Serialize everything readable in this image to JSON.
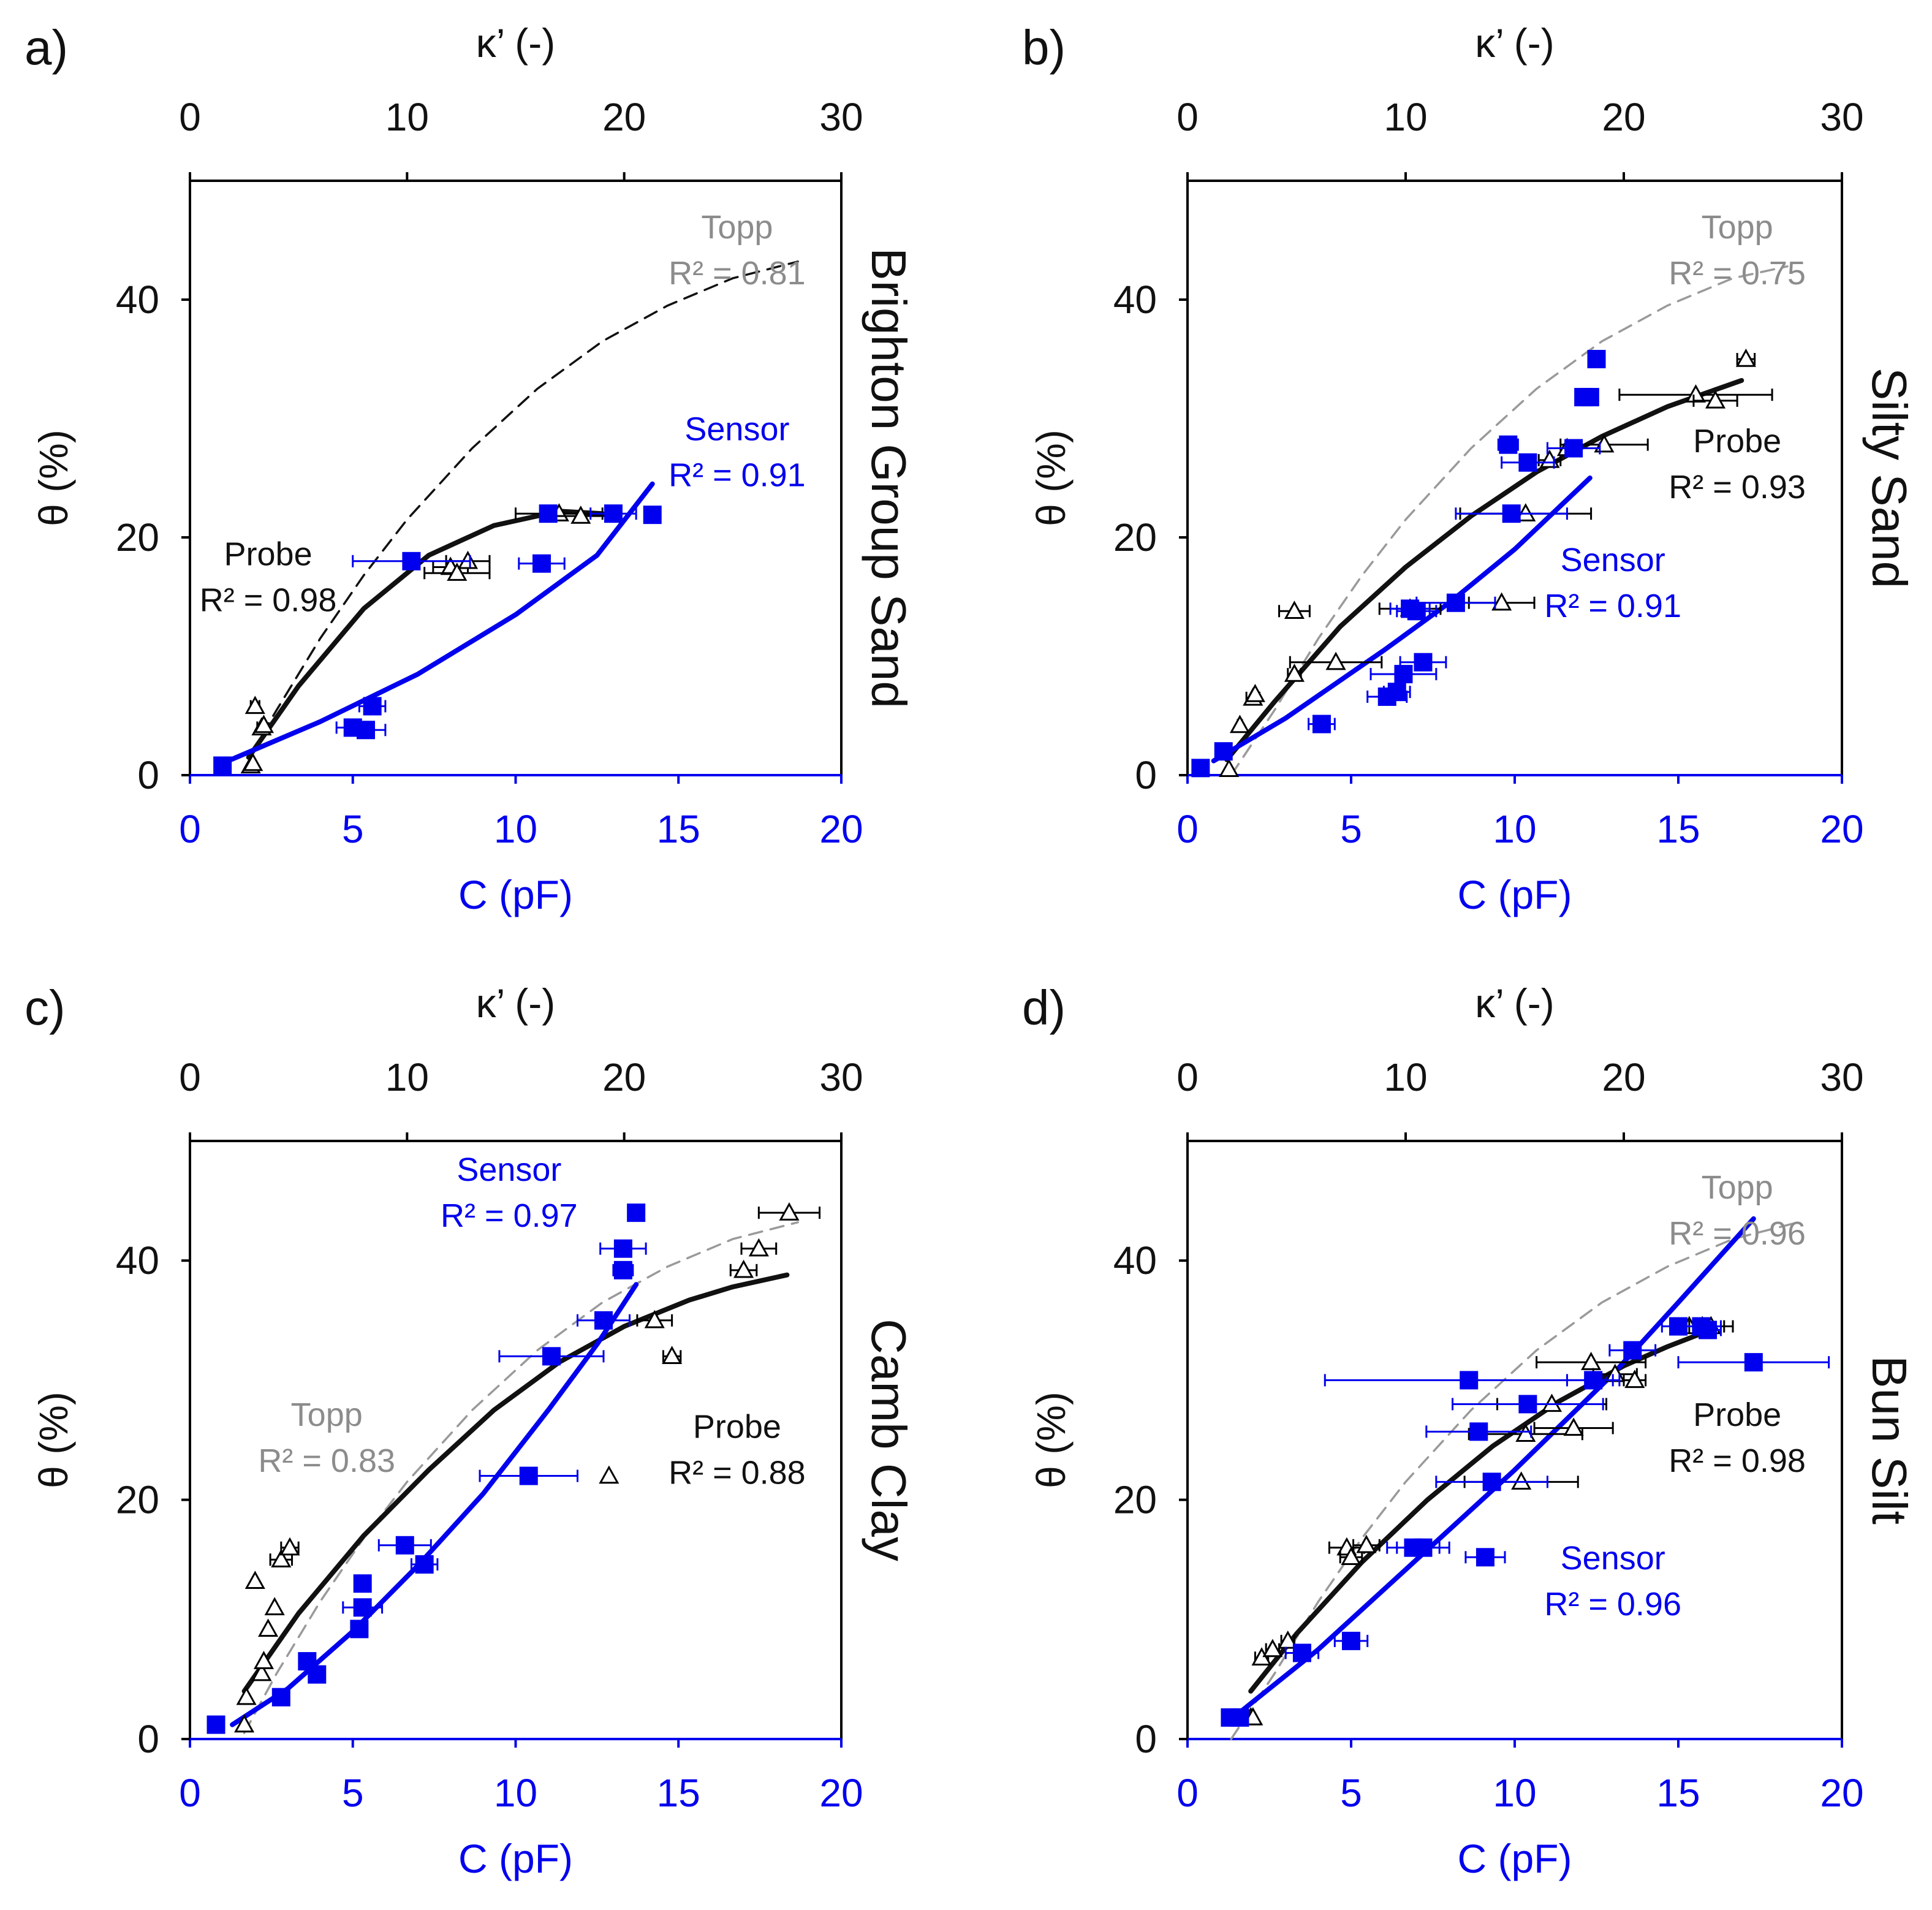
{
  "colors": {
    "sensor": "#0000ee",
    "probe": "#111111",
    "topp": "#8c8c8c",
    "axis_bottom": "#0000ee"
  },
  "chart_data": [
    {
      "type": "scatter",
      "panel_label": "a)",
      "soil": "Brighton Group Sand",
      "xlabel": "C (pF)",
      "x2label": "κ’ (-)",
      "ylabel": "θ (%)",
      "xlim": [
        0,
        20
      ],
      "x2lim": [
        0,
        30
      ],
      "ylim": [
        0,
        50
      ],
      "xticks": [
        "0",
        "5",
        "10",
        "15",
        "20"
      ],
      "x2ticks": [
        "0",
        "10",
        "20",
        "30"
      ],
      "yticks": [
        "0",
        "20",
        "40"
      ],
      "sensor": {
        "name": "Sensor",
        "r2_text": "R² = 0.91",
        "points": [
          [
            1.0,
            0.8,
            0
          ],
          [
            5.0,
            4.0,
            0.5
          ],
          [
            5.4,
            3.8,
            0.6
          ],
          [
            5.6,
            5.8,
            0.4
          ],
          [
            6.8,
            18.0,
            1.8
          ],
          [
            10.8,
            17.8,
            0.7
          ],
          [
            11.0,
            22.0,
            0
          ],
          [
            13.0,
            22.0,
            0.7
          ],
          [
            14.2,
            21.9,
            0
          ]
        ],
        "fit": [
          [
            1.0,
            1.0
          ],
          [
            4,
            4.5
          ],
          [
            7,
            8.5
          ],
          [
            10,
            13.5
          ],
          [
            12.5,
            18.5
          ],
          [
            14.2,
            24.5
          ]
        ]
      },
      "probe": {
        "name": "Probe",
        "r2_text": "R² = 0.98",
        "points": [
          [
            2.8,
            0.8,
            0
          ],
          [
            2.9,
            1.0,
            0
          ],
          [
            3.3,
            4.0,
            0.2
          ],
          [
            3.4,
            4.2,
            0
          ],
          [
            3.0,
            5.8,
            0.2
          ],
          [
            12.0,
            17.5,
            0.8
          ],
          [
            12.3,
            17.0,
            1.5
          ],
          [
            12.8,
            18.0,
            1.0
          ],
          [
            17.0,
            22.0,
            2.0
          ],
          [
            18.0,
            21.8,
            1.2
          ]
        ],
        "fit": [
          [
            2.7,
            1.5
          ],
          [
            5,
            7.5
          ],
          [
            8,
            14.0
          ],
          [
            11,
            18.5
          ],
          [
            14,
            21.0
          ],
          [
            17,
            22.2
          ],
          [
            19,
            22.0
          ]
        ]
      },
      "topp": {
        "name": "Topp",
        "r2_text": "R² = 0.81",
        "curve": [
          [
            2.8,
            1.8
          ],
          [
            4,
            5.5
          ],
          [
            6,
            11.5
          ],
          [
            8,
            16.8
          ],
          [
            10,
            21.5
          ],
          [
            13,
            27.5
          ],
          [
            16,
            32.5
          ],
          [
            19,
            36.5
          ],
          [
            22,
            39.5
          ],
          [
            25,
            41.8
          ],
          [
            28,
            43.2
          ]
        ]
      }
    },
    {
      "type": "scatter",
      "panel_label": "b)",
      "soil": "Silty Sand",
      "xlabel": "C (pF)",
      "x2label": "κ’ (-)",
      "ylabel": "θ (%)",
      "xlim": [
        0,
        20
      ],
      "x2lim": [
        0,
        30
      ],
      "ylim": [
        0,
        50
      ],
      "xticks": [
        "0",
        "5",
        "10",
        "15",
        "20"
      ],
      "x2ticks": [
        "0",
        "10",
        "20",
        "30"
      ],
      "yticks": [
        "0",
        "20",
        "40"
      ],
      "sensor": {
        "name": "Sensor",
        "r2_text": "R² = 0.91",
        "points": [
          [
            0.4,
            0.6,
            0
          ],
          [
            1.1,
            2.0,
            0
          ],
          [
            4.1,
            4.3,
            0.4
          ],
          [
            6.1,
            6.6,
            0.6
          ],
          [
            6.4,
            7.0,
            0.4
          ],
          [
            6.6,
            8.5,
            1.0
          ],
          [
            7.2,
            9.5,
            0.7
          ],
          [
            6.8,
            14.0,
            0.6
          ],
          [
            7.0,
            13.8,
            0.6
          ],
          [
            8.2,
            14.5,
            1.2
          ],
          [
            9.9,
            22.0,
            1.7
          ],
          [
            10.4,
            26.3,
            0.8
          ],
          [
            9.8,
            27.8,
            0.3
          ],
          [
            11.8,
            27.5,
            0.8
          ],
          [
            12.1,
            31.8,
            0
          ],
          [
            12.3,
            31.8,
            0
          ],
          [
            12.5,
            35.0,
            0
          ]
        ],
        "fit": [
          [
            0.8,
            1.2
          ],
          [
            3,
            4.8
          ],
          [
            6,
            10.5
          ],
          [
            8,
            14.5
          ],
          [
            10,
            19.0
          ],
          [
            12.3,
            25.0
          ]
        ]
      },
      "probe": {
        "name": "Probe",
        "r2_text": "R² = 0.93",
        "points": [
          [
            1.9,
            0.5,
            0
          ],
          [
            2.4,
            4.2,
            0.1
          ],
          [
            3.0,
            6.5,
            0.3
          ],
          [
            3.1,
            6.8,
            0
          ],
          [
            4.9,
            13.8,
            0.7
          ],
          [
            4.9,
            8.5,
            0.3
          ],
          [
            6.8,
            9.5,
            2.1
          ],
          [
            10.2,
            14.0,
            1.4
          ],
          [
            14.4,
            14.5,
            1.5
          ],
          [
            15.5,
            22.0,
            3.0
          ],
          [
            16.6,
            26.5,
            0.5
          ],
          [
            17.4,
            27.5,
            0
          ],
          [
            19.1,
            27.8,
            2.0
          ],
          [
            23.3,
            32.0,
            3.5
          ],
          [
            24.2,
            31.5,
            1.0
          ],
          [
            25.6,
            35.0,
            0.4
          ]
        ],
        "fit": [
          [
            1.8,
            1.3
          ],
          [
            4,
            6.2
          ],
          [
            7,
            12.5
          ],
          [
            10,
            17.5
          ],
          [
            13,
            21.8
          ],
          [
            16,
            25.5
          ],
          [
            19,
            28.5
          ],
          [
            22,
            31.0
          ],
          [
            25.4,
            33.2
          ]
        ]
      },
      "topp": {
        "name": "Topp",
        "r2_text": "R² = 0.75",
        "curve": [
          [
            2.0,
            0
          ],
          [
            4,
            5.5
          ],
          [
            6,
            11.5
          ],
          [
            8,
            16.8
          ],
          [
            10,
            21.5
          ],
          [
            13,
            27.5
          ],
          [
            16,
            32.5
          ],
          [
            19,
            36.5
          ],
          [
            22,
            39.5
          ],
          [
            25,
            41.8
          ],
          [
            27.5,
            42.8
          ]
        ]
      }
    },
    {
      "type": "scatter",
      "panel_label": "c)",
      "soil": "Camb Clay",
      "xlabel": "C (pF)",
      "x2label": "κ’ (-)",
      "ylabel": "θ (%)",
      "xlim": [
        0,
        20
      ],
      "x2lim": [
        0,
        30
      ],
      "ylim": [
        0,
        50
      ],
      "xticks": [
        "0",
        "5",
        "10",
        "15",
        "20"
      ],
      "x2ticks": [
        "0",
        "10",
        "20",
        "30"
      ],
      "yticks": [
        "0",
        "20",
        "40"
      ],
      "sensor": {
        "name": "Sensor",
        "r2_text": "R² = 0.97",
        "points": [
          [
            0.8,
            1.2,
            0
          ],
          [
            2.8,
            3.5,
            0
          ],
          [
            3.6,
            6.5,
            0
          ],
          [
            3.9,
            5.4,
            0
          ],
          [
            5.2,
            9.2,
            0
          ],
          [
            5.3,
            11.0,
            0.6
          ],
          [
            5.3,
            13.0,
            0
          ],
          [
            6.6,
            16.2,
            0.8
          ],
          [
            7.2,
            14.6,
            0.4
          ],
          [
            10.4,
            22.0,
            1.5
          ],
          [
            11.1,
            32.0,
            1.6
          ],
          [
            12.7,
            35.0,
            0.8
          ],
          [
            13.3,
            39.2,
            0.3
          ],
          [
            13.3,
            41.0,
            0.7
          ],
          [
            13.7,
            44.0,
            0
          ]
        ],
        "fit": [
          [
            1.3,
            1.2
          ],
          [
            3,
            4.2
          ],
          [
            5,
            9.0
          ],
          [
            7,
            14.5
          ],
          [
            9,
            20.5
          ],
          [
            11,
            27.5
          ],
          [
            12.5,
            33.0
          ],
          [
            13.7,
            38.0
          ]
        ]
      },
      "probe": {
        "name": "Probe",
        "r2_text": "R² = 0.88",
        "points": [
          [
            2.5,
            1.2,
            0
          ],
          [
            2.6,
            3.5,
            0
          ],
          [
            3.3,
            5.5,
            0
          ],
          [
            3.4,
            6.5,
            0
          ],
          [
            3.6,
            9.2,
            0
          ],
          [
            3.9,
            11.0,
            0
          ],
          [
            3.0,
            13.2,
            0
          ],
          [
            4.2,
            15.0,
            0.5
          ],
          [
            4.6,
            16.0,
            0.4
          ],
          [
            19.3,
            22.0,
            0
          ],
          [
            21.4,
            35.0,
            0.8
          ],
          [
            22.2,
            32.0,
            0.4
          ],
          [
            25.5,
            39.2,
            0.6
          ],
          [
            26.2,
            41.0,
            0.8
          ],
          [
            27.6,
            44.0,
            1.4
          ]
        ],
        "fit": [
          [
            2.5,
            4.0
          ],
          [
            5,
            10.5
          ],
          [
            8,
            17.0
          ],
          [
            11,
            22.5
          ],
          [
            14,
            27.5
          ],
          [
            17,
            31.5
          ],
          [
            20,
            34.5
          ],
          [
            23,
            36.7
          ],
          [
            25,
            37.8
          ],
          [
            27.5,
            38.8
          ]
        ]
      },
      "topp": {
        "name": "Topp",
        "r2_text": "R² = 0.83",
        "curve": [
          [
            2.5,
            0.5
          ],
          [
            4,
            5.5
          ],
          [
            6,
            11.5
          ],
          [
            8,
            16.8
          ],
          [
            10,
            21.5
          ],
          [
            13,
            27.5
          ],
          [
            16,
            32.5
          ],
          [
            19,
            36.5
          ],
          [
            22,
            39.5
          ],
          [
            25,
            41.8
          ],
          [
            28,
            43.2
          ]
        ]
      }
    },
    {
      "type": "scatter",
      "panel_label": "d)",
      "soil": "Bun Silt",
      "xlabel": "C (pF)",
      "x2label": "κ’ (-)",
      "ylabel": "θ (%)",
      "xlim": [
        0,
        20
      ],
      "x2lim": [
        0,
        30
      ],
      "ylim": [
        0,
        50
      ],
      "xticks": [
        "0",
        "5",
        "10",
        "15",
        "20"
      ],
      "x2ticks": [
        "0",
        "10",
        "20",
        "30"
      ],
      "yticks": [
        "0",
        "20",
        "40"
      ],
      "sensor": {
        "name": "Sensor",
        "r2_text": "R² = 0.96",
        "points": [
          [
            1.3,
            1.8,
            0
          ],
          [
            1.6,
            1.8,
            0
          ],
          [
            3.5,
            7.2,
            0.5
          ],
          [
            5.0,
            8.2,
            0.5
          ],
          [
            6.9,
            16.0,
            0.8
          ],
          [
            7.2,
            16.0,
            0.8
          ],
          [
            9.1,
            15.2,
            0.6
          ],
          [
            9.3,
            21.5,
            1.7
          ],
          [
            8.9,
            25.7,
            1.6
          ],
          [
            10.4,
            28.0,
            2.3
          ],
          [
            8.6,
            30.0,
            4.4
          ],
          [
            12.4,
            30.0,
            0.8
          ],
          [
            13.6,
            32.5,
            0.7
          ],
          [
            15.0,
            34.5,
            0.5
          ],
          [
            15.7,
            34.5,
            0.6
          ],
          [
            15.9,
            34.2,
            0.4
          ],
          [
            17.3,
            31.5,
            2.3
          ]
        ],
        "fit": [
          [
            1.4,
            1.8
          ],
          [
            4,
            7.5
          ],
          [
            7,
            15.0
          ],
          [
            10,
            22.5
          ],
          [
            13,
            30.5
          ],
          [
            15,
            36.5
          ],
          [
            17.3,
            43.5
          ]
        ]
      },
      "probe": {
        "name": "Probe",
        "r2_text": "R² = 0.98",
        "points": [
          [
            2.9,
            1.8,
            0
          ],
          [
            3.0,
            1.8,
            0
          ],
          [
            3.4,
            6.8,
            0.3
          ],
          [
            3.9,
            7.5,
            0.3
          ],
          [
            4.6,
            8.2,
            0.3
          ],
          [
            7.3,
            16.0,
            0.8
          ],
          [
            7.5,
            15.2,
            0.5
          ],
          [
            8.2,
            16.2,
            0.6
          ],
          [
            15.3,
            21.5,
            2.6
          ],
          [
            15.5,
            25.5,
            2.6
          ],
          [
            17.7,
            26.0,
            1.8
          ],
          [
            16.7,
            28.0,
            2.5
          ],
          [
            18.5,
            31.5,
            2.5
          ],
          [
            19.6,
            30.5,
            1.0
          ],
          [
            20.5,
            30.0,
            0.5
          ],
          [
            23.0,
            34.5,
            0
          ],
          [
            23.6,
            34.5,
            1.0
          ],
          [
            24.0,
            34.5,
            1.0
          ]
        ],
        "fit": [
          [
            2.9,
            4.0
          ],
          [
            5,
            8.8
          ],
          [
            8,
            14.8
          ],
          [
            11,
            20.0
          ],
          [
            14,
            24.5
          ],
          [
            17,
            28.2
          ],
          [
            20,
            31.2
          ],
          [
            22,
            32.8
          ],
          [
            23.7,
            34.0
          ]
        ]
      },
      "topp": {
        "name": "Topp",
        "r2_text": "R² = 0.96",
        "curve": [
          [
            2.0,
            0
          ],
          [
            4,
            5.5
          ],
          [
            6,
            11.5
          ],
          [
            8,
            16.8
          ],
          [
            10,
            21.5
          ],
          [
            13,
            27.5
          ],
          [
            16,
            32.5
          ],
          [
            19,
            36.5
          ],
          [
            22,
            39.5
          ],
          [
            25,
            41.8
          ],
          [
            28,
            43.2
          ]
        ]
      }
    }
  ]
}
